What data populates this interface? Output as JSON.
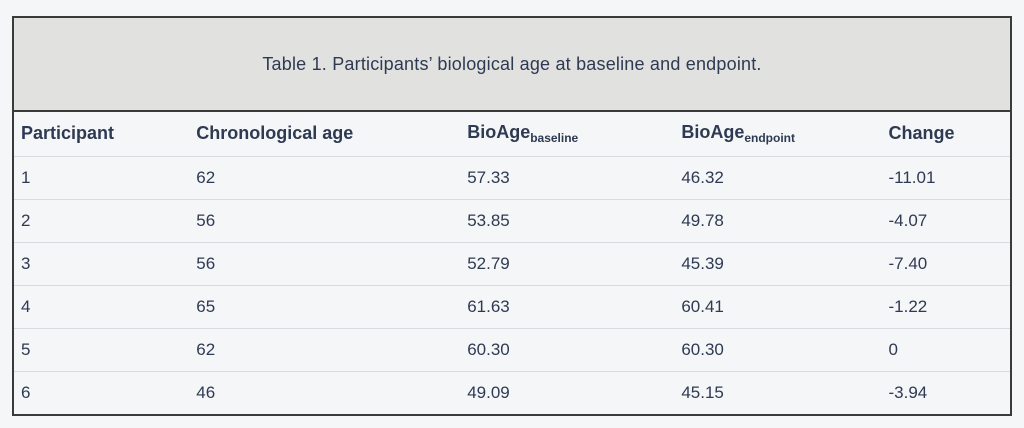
{
  "table": {
    "caption": "Table 1. Participants’ biological age at baseline and endpoint.",
    "columns": [
      {
        "label": "Participant"
      },
      {
        "label": "Chronological age"
      },
      {
        "base": "BioAge",
        "sub": "baseline"
      },
      {
        "base": "BioAge",
        "sub": "endpoint"
      },
      {
        "label": "Change"
      }
    ],
    "rows": [
      [
        "1",
        "62",
        "57.33",
        "46.32",
        "-11.01"
      ],
      [
        "2",
        "56",
        "53.85",
        "49.78",
        "-4.07"
      ],
      [
        "3",
        "56",
        "52.79",
        "45.39",
        "-7.40"
      ],
      [
        "4",
        "65",
        "61.63",
        "60.41",
        "-1.22"
      ],
      [
        "5",
        "62",
        "60.30",
        "60.30",
        "0"
      ],
      [
        "6",
        "46",
        "49.09",
        "45.15",
        "-3.94"
      ]
    ]
  },
  "colors": {
    "page_background": "#f4f6f8",
    "caption_background": "#e1e1e0",
    "row_background": "#f5f6f8",
    "outer_border": "#3a3a3a",
    "row_divider": "#d8dbe0",
    "text": "#2e3a52"
  }
}
